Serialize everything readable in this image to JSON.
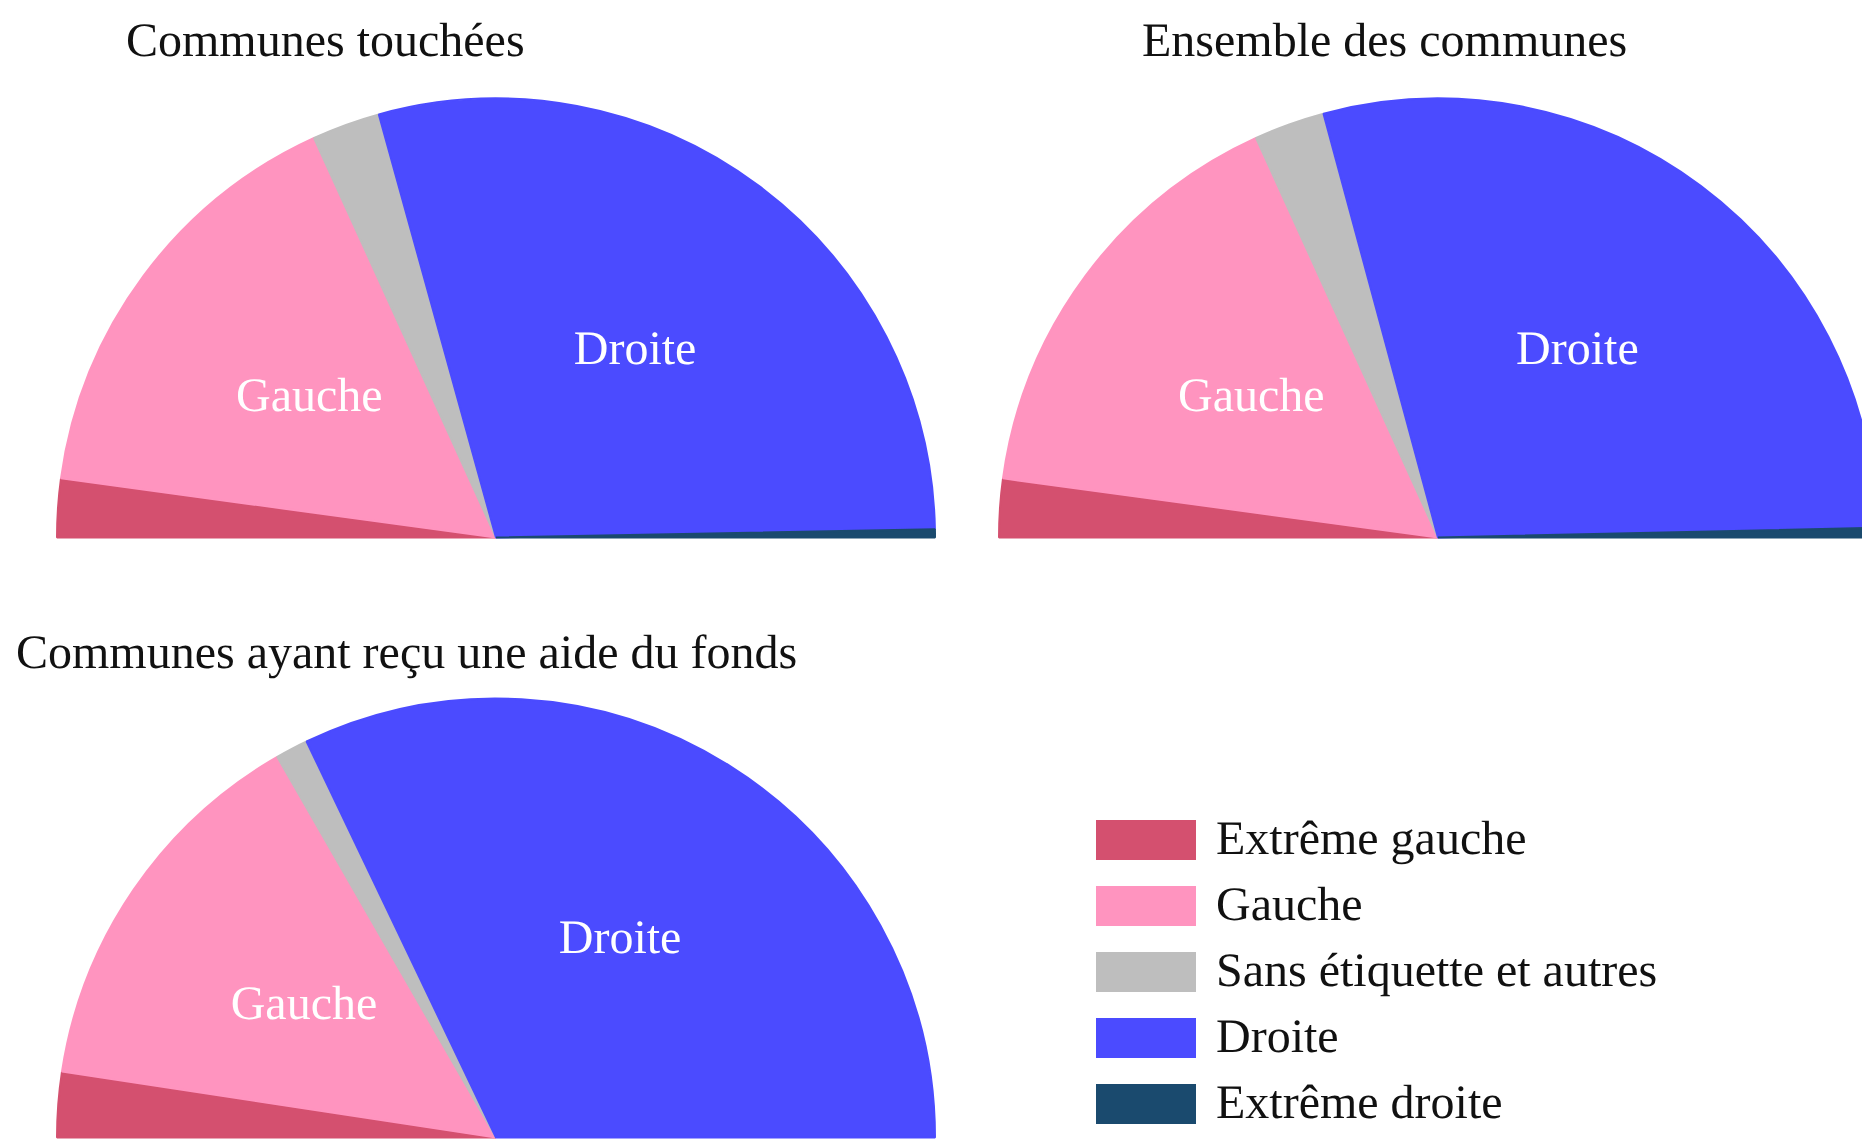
{
  "chart_data": [
    {
      "type": "pie",
      "title": "Communes touchées",
      "categories": [
        null,
        null,
        null,
        null,
        null
      ],
      "values": [
        4.3,
        32.1,
        5,
        58,
        0.6
      ],
      "colors": [
        "#d4506f",
        "#ff94bf",
        "#bebebe",
        "#4b4bff",
        "#1a4a6e"
      ],
      "value_labels": [
        null,
        "Gauche",
        null,
        "Droite",
        null
      ],
      "legend": false
    },
    {
      "type": "pie",
      "title": "Ensemble des communes",
      "categories": [
        null,
        null,
        null,
        null,
        null
      ],
      "values": [
        4.3,
        32.1,
        5.2,
        57.7,
        0.7
      ],
      "colors": [
        "#d4506f",
        "#ff94bf",
        "#bebebe",
        "#4b4bff",
        "#1a4a6e"
      ],
      "value_labels": [
        null,
        "Gauche",
        null,
        "Droite",
        null
      ],
      "legend": false
    },
    {
      "type": "pie",
      "title": "Communes ayant reçu une aide du fonds",
      "categories": [
        "Extrême gauche",
        "Gauche",
        "Sans étiquette et autres",
        "Droite",
        "Extrême droite"
      ],
      "values": [
        4.8,
        28.6,
        2.4,
        64.2,
        0
      ],
      "colors": [
        "#d4506f",
        "#ff94bf",
        "#bebebe",
        "#4b4bff",
        "#1a4a6e"
      ],
      "value_labels": [
        null,
        "Gauche",
        null,
        "Droite",
        null
      ],
      "legend": "bottom right"
    }
  ]
}
